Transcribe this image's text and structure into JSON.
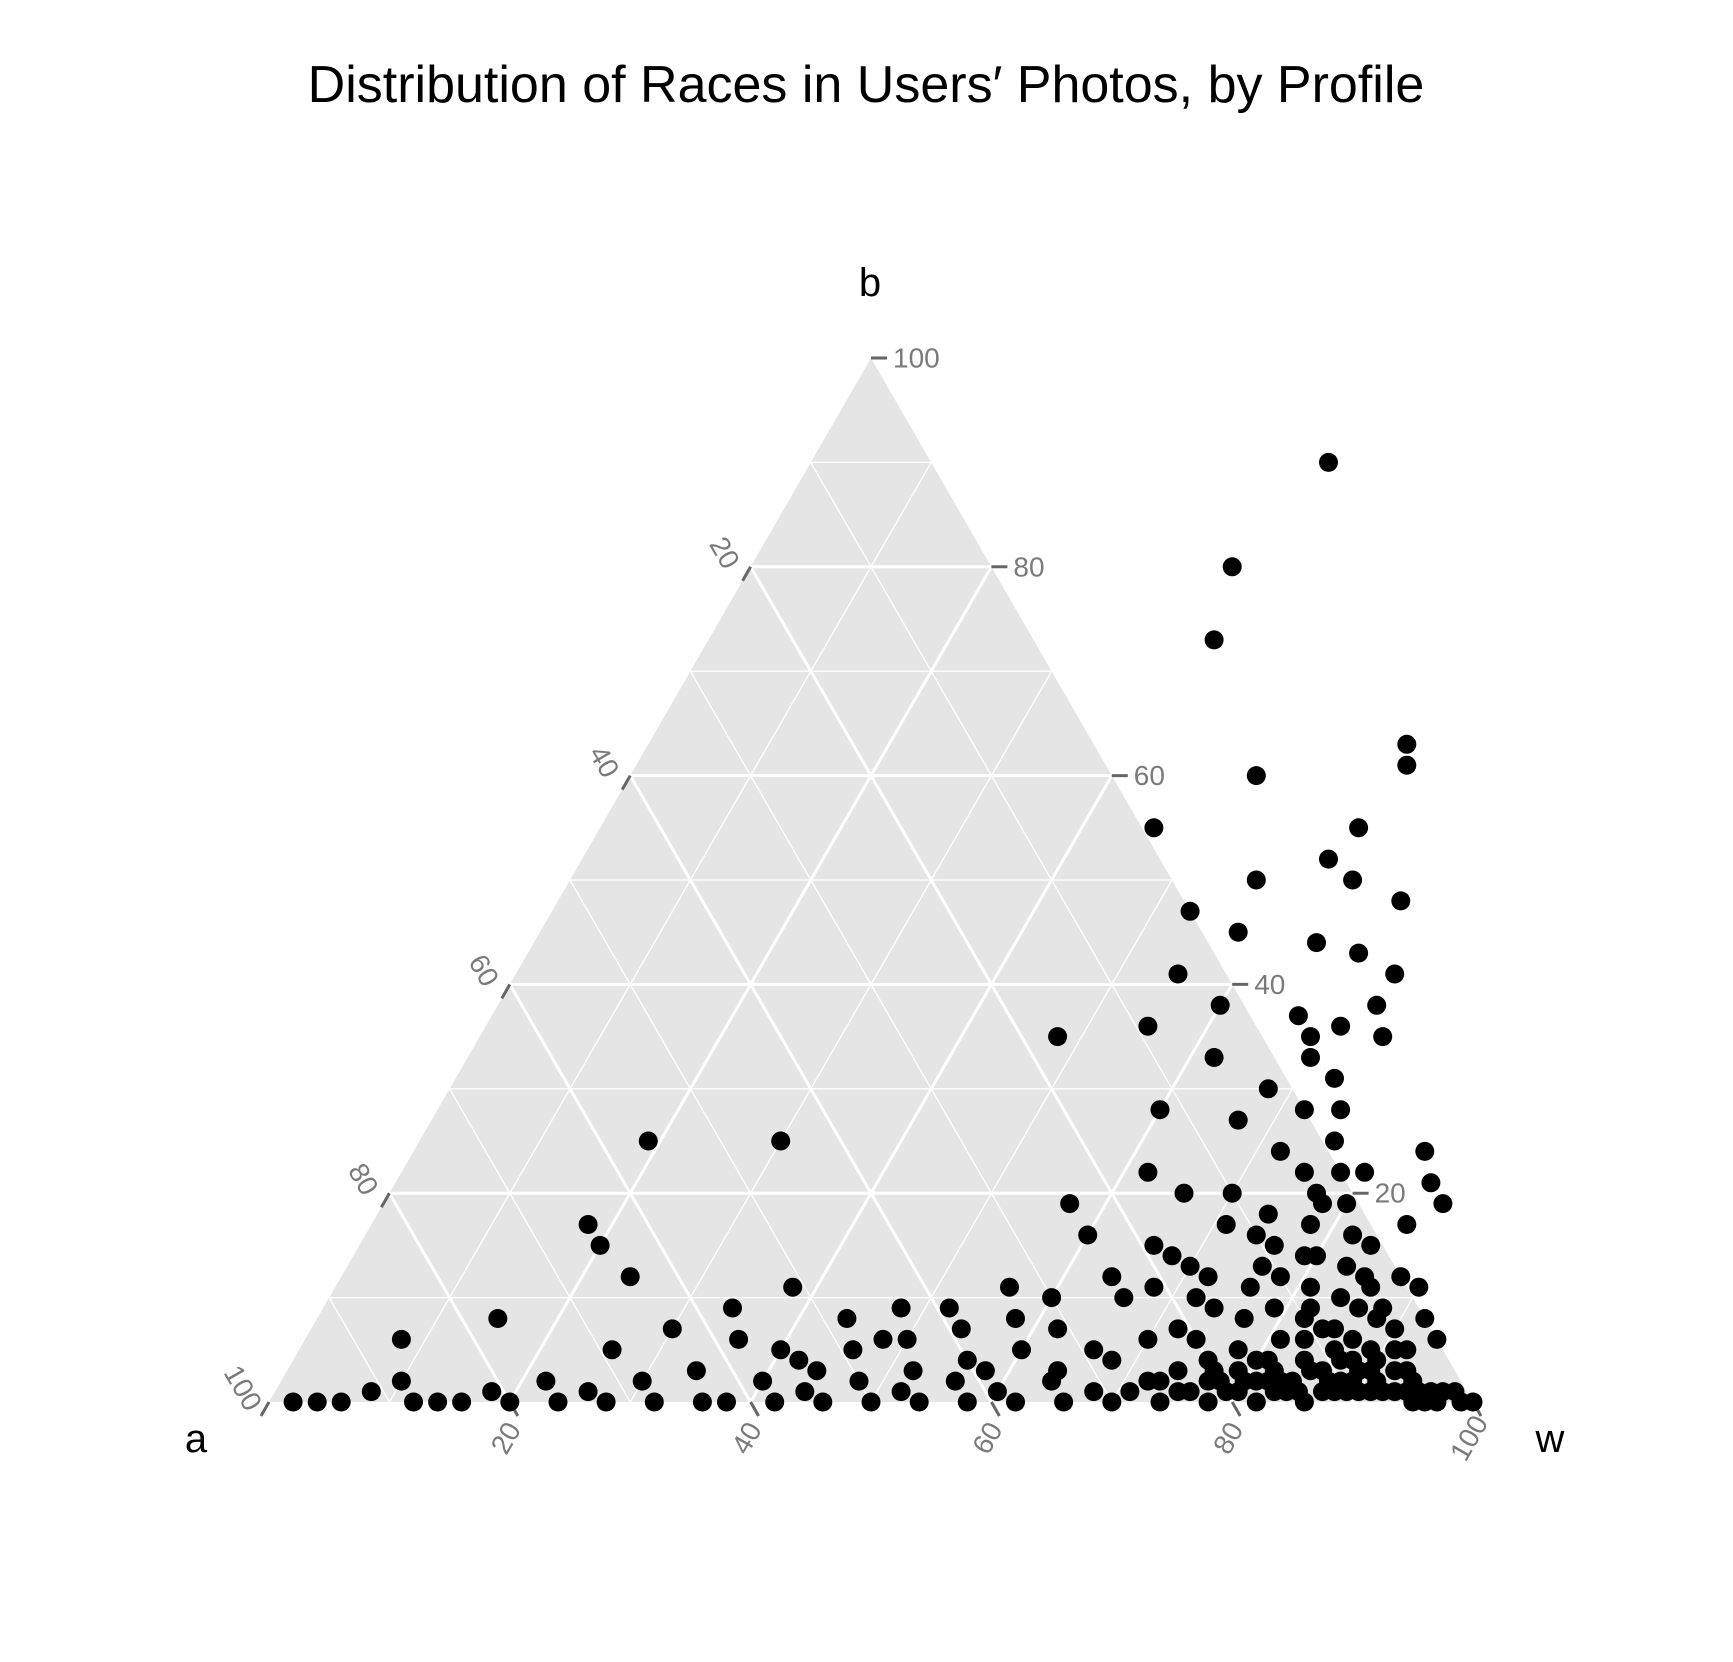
{
  "chart_data": {
    "type": "scatter",
    "subtype": "ternary",
    "title": "Distribution of Races in Users′ Photos, by Profile",
    "axes": {
      "a": {
        "label": "a",
        "ticks": [
          "20",
          "40",
          "60",
          "80",
          "100"
        ]
      },
      "b": {
        "label": "b",
        "ticks": [
          "20",
          "40",
          "60",
          "80",
          "100"
        ]
      },
      "w": {
        "label": "w",
        "ticks": [
          "20",
          "40",
          "60",
          "80",
          "100"
        ]
      }
    },
    "scale_range": [
      0,
      100
    ],
    "grid": true,
    "legend": "none",
    "colors": {
      "panel": "#e5e5e5",
      "grid": "#ffffff",
      "point": "#000000",
      "tick": "#666666",
      "tick_label": "#7a7a7a"
    },
    "points_fields": [
      "w",
      "b"
    ],
    "points": [
      [
        2,
        0
      ],
      [
        8,
        1
      ],
      [
        8,
        6
      ],
      [
        10,
        2
      ],
      [
        15,
        8
      ],
      [
        18,
        17
      ],
      [
        19,
        25
      ],
      [
        20,
        15
      ],
      [
        24,
        12
      ],
      [
        30,
        25
      ],
      [
        36,
        0
      ],
      [
        40,
        80
      ],
      [
        42,
        73
      ],
      [
        43,
        90
      ],
      [
        46,
        55
      ],
      [
        48,
        35
      ],
      [
        52,
        60
      ],
      [
        53,
        47
      ],
      [
        55,
        36
      ],
      [
        55,
        41
      ],
      [
        57,
        19
      ],
      [
        57,
        50
      ],
      [
        58,
        8
      ],
      [
        58,
        45
      ],
      [
        60,
        16
      ],
      [
        60,
        28
      ],
      [
        60,
        38
      ],
      [
        62,
        22
      ],
      [
        62,
        33
      ],
      [
        62,
        52
      ],
      [
        63,
        55
      ],
      [
        63,
        63
      ],
      [
        64,
        61
      ],
      [
        65,
        44
      ],
      [
        65,
        50
      ],
      [
        66,
        10
      ],
      [
        66,
        20
      ],
      [
        67,
        27
      ],
      [
        67,
        37
      ],
      [
        68,
        14
      ],
      [
        68,
        30
      ],
      [
        69,
        35
      ],
      [
        69,
        43
      ],
      [
        70,
        33
      ],
      [
        70,
        48
      ],
      [
        70,
        20
      ],
      [
        71,
        36
      ],
      [
        71,
        17
      ],
      [
        72,
        28
      ],
      [
        72,
        12
      ],
      [
        72,
        24
      ],
      [
        73,
        41
      ],
      [
        73,
        38
      ],
      [
        73,
        31
      ],
      [
        74,
        6
      ],
      [
        74,
        18
      ],
      [
        74,
        9
      ],
      [
        75,
        35
      ],
      [
        75,
        22
      ],
      [
        75,
        28
      ],
      [
        76,
        15
      ],
      [
        76,
        11
      ],
      [
        76,
        25
      ],
      [
        77,
        20
      ],
      [
        77,
        8
      ],
      [
        77,
        3
      ],
      [
        78,
        17
      ],
      [
        78,
        12
      ],
      [
        78,
        22
      ],
      [
        78,
        5
      ],
      [
        79,
        14
      ],
      [
        79,
        9
      ],
      [
        80,
        19
      ],
      [
        80,
        2
      ],
      [
        81,
        11
      ],
      [
        81,
        6
      ],
      [
        82,
        16
      ],
      [
        82,
        8
      ],
      [
        82,
        3
      ],
      [
        83,
        13
      ],
      [
        83,
        6
      ],
      [
        84,
        10
      ],
      [
        84,
        4
      ],
      [
        85,
        12
      ],
      [
        85,
        7
      ],
      [
        86,
        9
      ],
      [
        86,
        3
      ],
      [
        87,
        6
      ],
      [
        87,
        2
      ],
      [
        88,
        8
      ],
      [
        88,
        4
      ],
      [
        89,
        5
      ],
      [
        89,
        2
      ],
      [
        90,
        3
      ],
      [
        91,
        2
      ],
      [
        91,
        5
      ],
      [
        92,
        1
      ],
      [
        93,
        3
      ],
      [
        94,
        2
      ],
      [
        95,
        1
      ],
      [
        96,
        1
      ],
      [
        97,
        1
      ],
      [
        98,
        1
      ],
      [
        99,
        0
      ],
      [
        100,
        0
      ],
      [
        90,
        1
      ],
      [
        88,
        1
      ],
      [
        86,
        0
      ],
      [
        84,
        1
      ],
      [
        82,
        0
      ],
      [
        80,
        1
      ],
      [
        78,
        0
      ],
      [
        76,
        1
      ],
      [
        74,
        0
      ],
      [
        72,
        2
      ],
      [
        70,
        0
      ],
      [
        68,
        1
      ],
      [
        66,
        0
      ],
      [
        64,
        2
      ],
      [
        62,
        0
      ],
      [
        60,
        1
      ],
      [
        58,
        0
      ],
      [
        56,
        2
      ],
      [
        54,
        0
      ],
      [
        52,
        1
      ],
      [
        50,
        0
      ],
      [
        48,
        2
      ],
      [
        46,
        0
      ],
      [
        44,
        1
      ],
      [
        42,
        0
      ],
      [
        40,
        2
      ],
      [
        38,
        0
      ],
      [
        34,
        3
      ],
      [
        32,
        0
      ],
      [
        30,
        2
      ],
      [
        28,
        0
      ],
      [
        26,
        1
      ],
      [
        24,
        0
      ],
      [
        22,
        2
      ],
      [
        20,
        0
      ],
      [
        18,
        1
      ],
      [
        16,
        0
      ],
      [
        14,
        0
      ],
      [
        12,
        0
      ],
      [
        6,
        0
      ],
      [
        4,
        0
      ],
      [
        26,
        5
      ],
      [
        30,
        7
      ],
      [
        34,
        9
      ],
      [
        38,
        11
      ],
      [
        42,
        4
      ],
      [
        44,
        8
      ],
      [
        46,
        5
      ],
      [
        48,
        9
      ],
      [
        50,
        6
      ],
      [
        52,
        3
      ],
      [
        54,
        7
      ],
      [
        56,
        4
      ],
      [
        58,
        3
      ],
      [
        60,
        5
      ],
      [
        62,
        7
      ],
      [
        64,
        3
      ],
      [
        66,
        5
      ],
      [
        68,
        4
      ],
      [
        70,
        6
      ],
      [
        72,
        7
      ],
      [
        74,
        3
      ],
      [
        76,
        4
      ],
      [
        78,
        2
      ],
      [
        80,
        4
      ],
      [
        82,
        2
      ],
      [
        84,
        2
      ],
      [
        86,
        5
      ],
      [
        88,
        2
      ],
      [
        90,
        4
      ],
      [
        92,
        3
      ],
      [
        94,
        1
      ],
      [
        96,
        0
      ],
      [
        36,
        6
      ],
      [
        40,
        5
      ],
      [
        44,
        3
      ],
      [
        48,
        6
      ],
      [
        52,
        9
      ],
      [
        56,
        11
      ],
      [
        60,
        10
      ],
      [
        64,
        12
      ],
      [
        68,
        11
      ],
      [
        72,
        10
      ],
      [
        76,
        13
      ],
      [
        80,
        14
      ],
      [
        84,
        15
      ],
      [
        86,
        17
      ],
      [
        88,
        12
      ],
      [
        90,
        11
      ],
      [
        92,
        8
      ],
      [
        94,
        6
      ],
      [
        66,
        15
      ],
      [
        70,
        13
      ],
      [
        74,
        16
      ],
      [
        78,
        19
      ],
      [
        80,
        22
      ],
      [
        84,
        24
      ],
      [
        86,
        21
      ],
      [
        88,
        19
      ],
      [
        82,
        9
      ],
      [
        84,
        7
      ],
      [
        86,
        11
      ],
      [
        88,
        9
      ],
      [
        90,
        7
      ],
      [
        92,
        5
      ],
      [
        79,
        3
      ],
      [
        81,
        4
      ],
      [
        83,
        2
      ],
      [
        85,
        3
      ],
      [
        87,
        4
      ],
      [
        89,
        3
      ],
      [
        91,
        1
      ],
      [
        93,
        1
      ],
      [
        95,
        0
      ],
      [
        97,
        0
      ],
      [
        71,
        1
      ],
      [
        73,
        2
      ],
      [
        75,
        1
      ],
      [
        77,
        2
      ],
      [
        79,
        1
      ],
      [
        81,
        2
      ],
      [
        83,
        1
      ],
      [
        85,
        1
      ],
      [
        87,
        1
      ],
      [
        89,
        1
      ]
    ]
  }
}
